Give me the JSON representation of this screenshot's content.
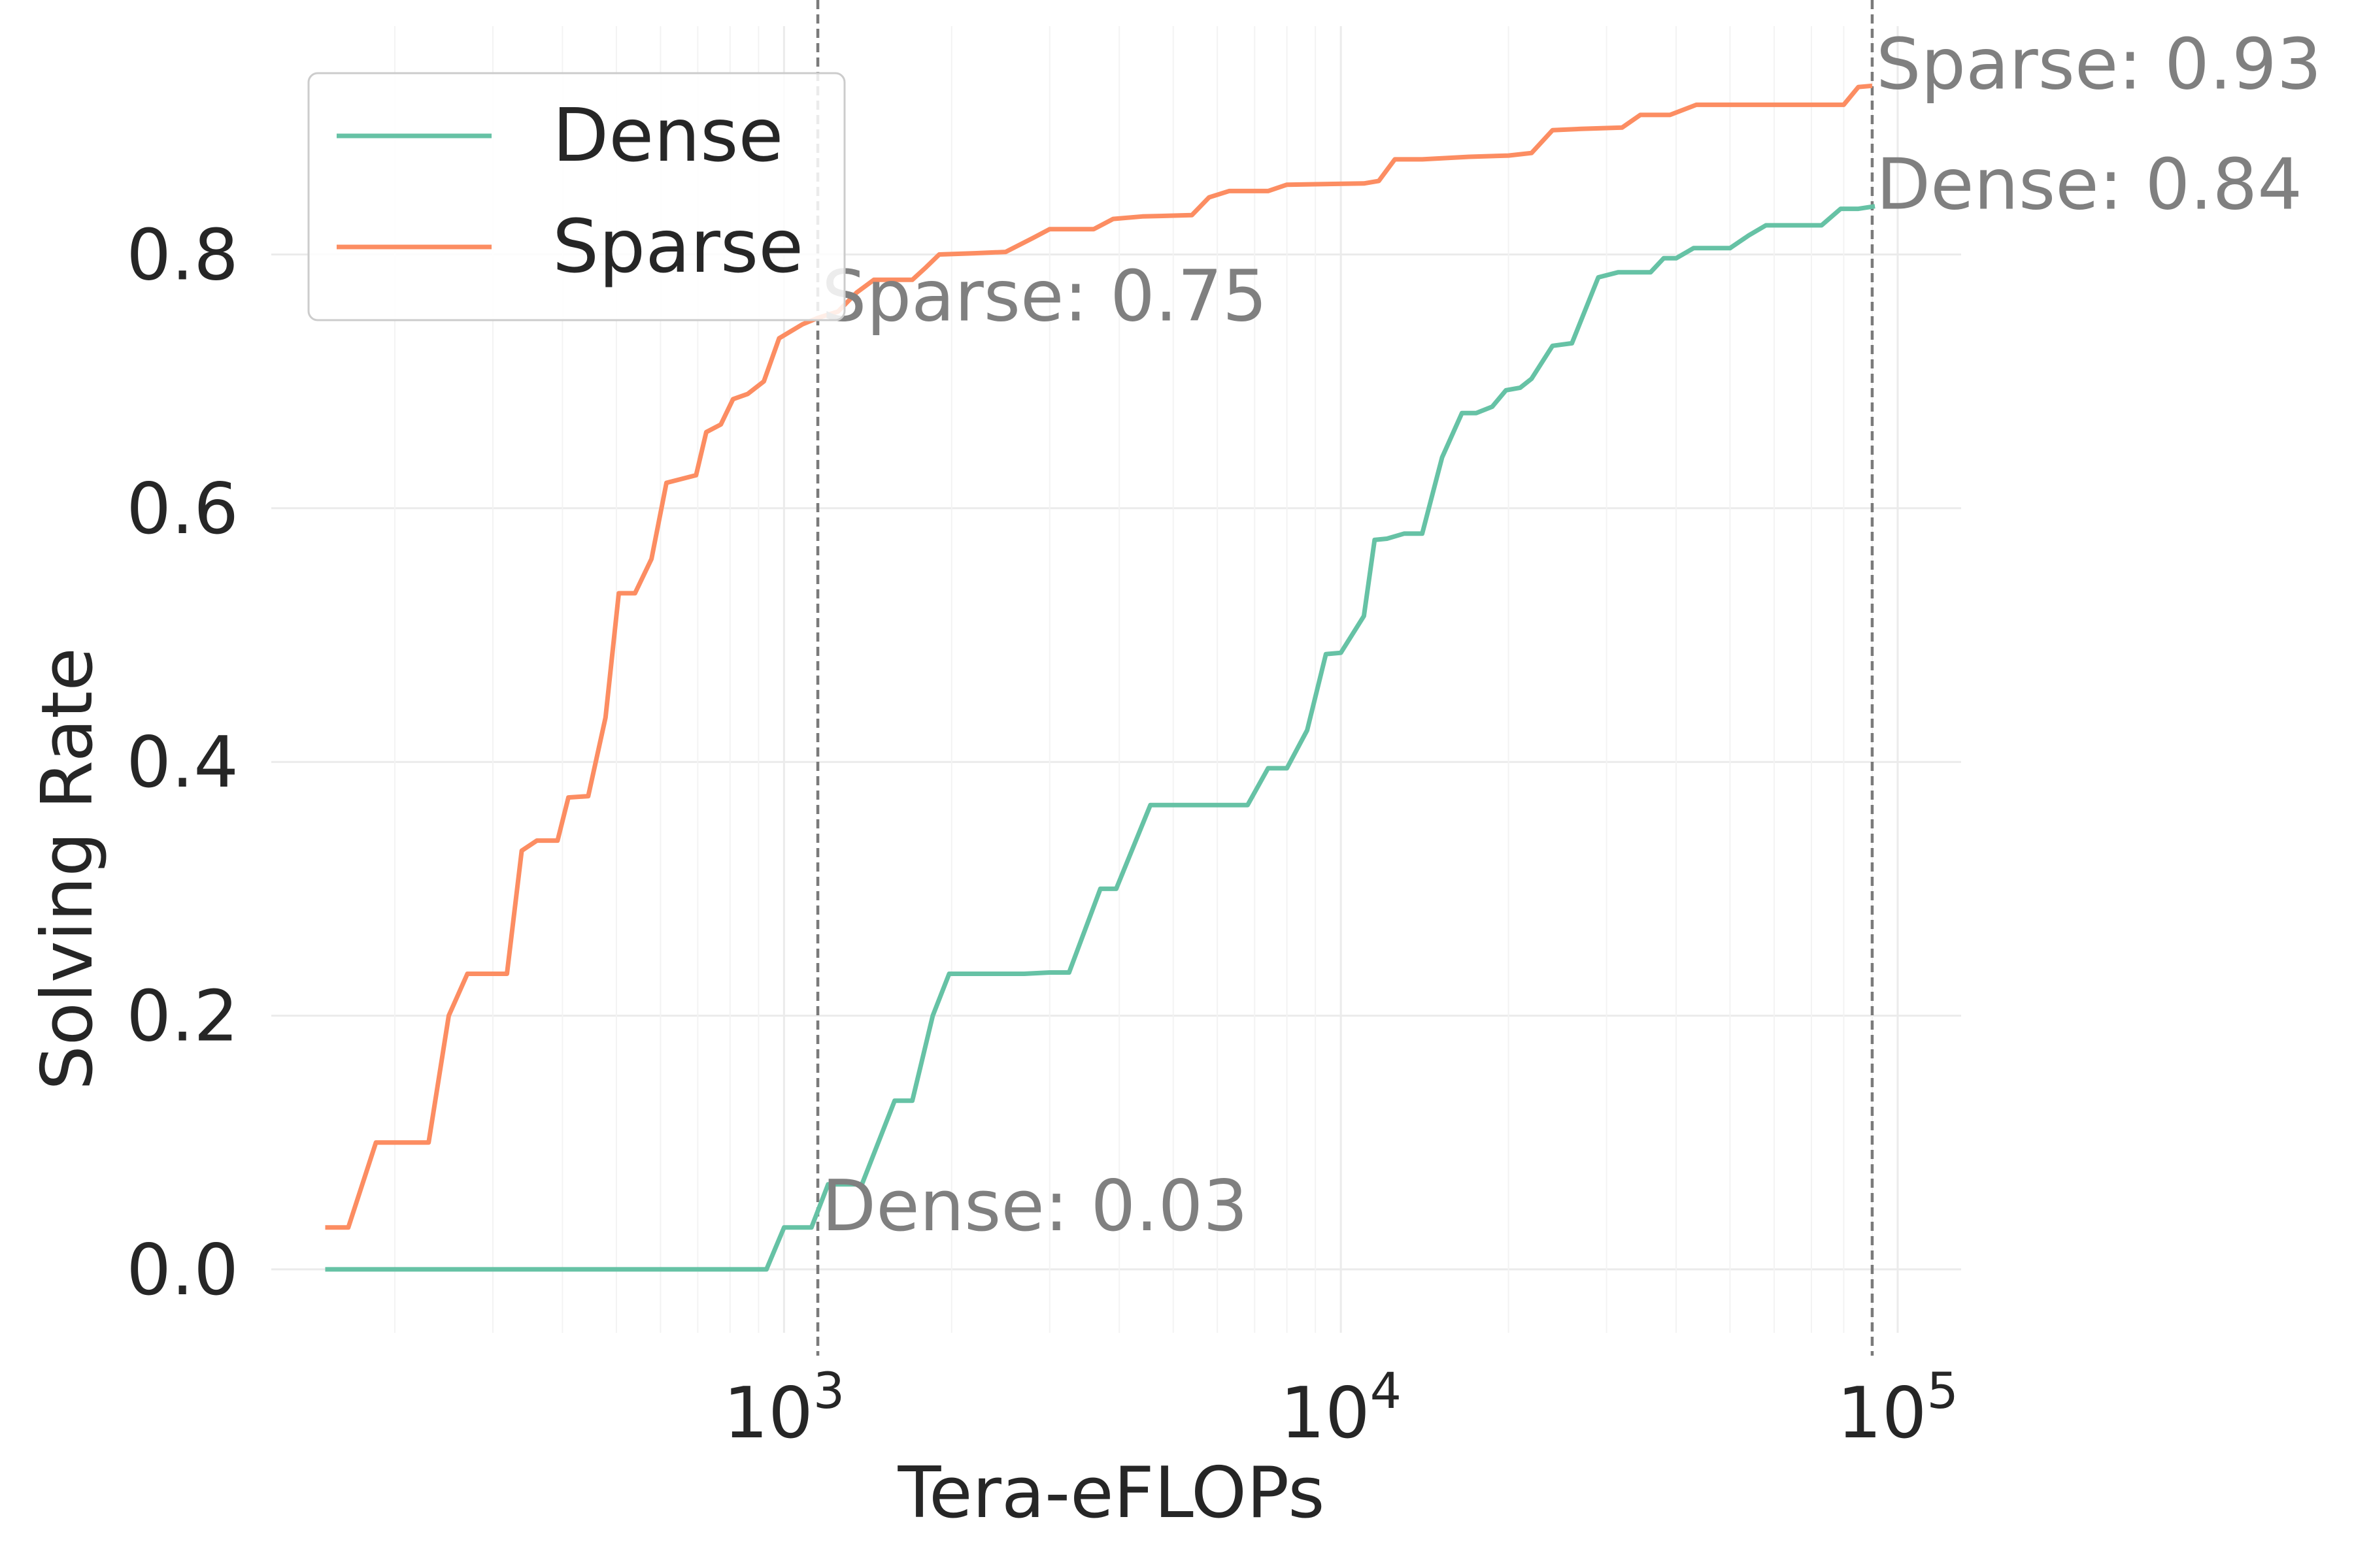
{
  "chart_data": {
    "type": "line",
    "xlabel": "Tera-eFLOPs",
    "ylabel": "Solving Rate",
    "xscale": "log",
    "xlim": [
      120,
      130000
    ],
    "ylim": [
      -0.05,
      0.98
    ],
    "grid": true,
    "legend_position": "top-left",
    "x_ticks": [
      {
        "value": 1000,
        "base": "10",
        "exp": "3"
      },
      {
        "value": 10000,
        "base": "10",
        "exp": "4"
      },
      {
        "value": 100000,
        "base": "10",
        "exp": "5"
      }
    ],
    "y_ticks": [
      {
        "value": 0.0,
        "label": "0.0"
      },
      {
        "value": 0.2,
        "label": "0.2"
      },
      {
        "value": 0.4,
        "label": "0.4"
      },
      {
        "value": 0.6,
        "label": "0.6"
      },
      {
        "value": 0.8,
        "label": "0.8"
      }
    ],
    "series": [
      {
        "name": "Dense",
        "color": "#66c2a5",
        "points": [
          [
            150,
            0.0
          ],
          [
            300,
            0.0
          ],
          [
            600,
            0.0
          ],
          [
            930,
            0.0
          ],
          [
            1000,
            0.033
          ],
          [
            1120,
            0.033
          ],
          [
            1200,
            0.067
          ],
          [
            1380,
            0.067
          ],
          [
            1580,
            0.133
          ],
          [
            1700,
            0.133
          ],
          [
            1850,
            0.2
          ],
          [
            1980,
            0.233
          ],
          [
            2700,
            0.233
          ],
          [
            3000,
            0.234
          ],
          [
            3250,
            0.234
          ],
          [
            3700,
            0.3
          ],
          [
            3950,
            0.3
          ],
          [
            4550,
            0.366
          ],
          [
            6800,
            0.366
          ],
          [
            7400,
            0.395
          ],
          [
            8000,
            0.395
          ],
          [
            8700,
            0.425
          ],
          [
            9400,
            0.485
          ],
          [
            10000,
            0.486
          ],
          [
            11000,
            0.515
          ],
          [
            11500,
            0.575
          ],
          [
            12100,
            0.576
          ],
          [
            13000,
            0.58
          ],
          [
            14000,
            0.58
          ],
          [
            15200,
            0.64
          ],
          [
            16500,
            0.675
          ],
          [
            17500,
            0.675
          ],
          [
            18700,
            0.68
          ],
          [
            19800,
            0.693
          ],
          [
            21000,
            0.695
          ],
          [
            22000,
            0.702
          ],
          [
            24000,
            0.728
          ],
          [
            26000,
            0.73
          ],
          [
            29000,
            0.782
          ],
          [
            31500,
            0.786
          ],
          [
            36000,
            0.786
          ],
          [
            38000,
            0.797
          ],
          [
            40000,
            0.797
          ],
          [
            43000,
            0.805
          ],
          [
            50000,
            0.805
          ],
          [
            54000,
            0.815
          ],
          [
            58000,
            0.823
          ],
          [
            73000,
            0.823
          ],
          [
            79000,
            0.836
          ],
          [
            85000,
            0.836
          ],
          [
            91000,
            0.838
          ]
        ]
      },
      {
        "name": "Sparse",
        "color": "#fc8d62",
        "points": [
          [
            150,
            0.033
          ],
          [
            165,
            0.033
          ],
          [
            185,
            0.1
          ],
          [
            230,
            0.1
          ],
          [
            250,
            0.2
          ],
          [
            270,
            0.233
          ],
          [
            318,
            0.233
          ],
          [
            338,
            0.33
          ],
          [
            360,
            0.338
          ],
          [
            392,
            0.338
          ],
          [
            410,
            0.372
          ],
          [
            445,
            0.373
          ],
          [
            478,
            0.435
          ],
          [
            505,
            0.533
          ],
          [
            540,
            0.533
          ],
          [
            578,
            0.56
          ],
          [
            615,
            0.62
          ],
          [
            695,
            0.626
          ],
          [
            725,
            0.66
          ],
          [
            770,
            0.666
          ],
          [
            810,
            0.686
          ],
          [
            860,
            0.69
          ],
          [
            920,
            0.7
          ],
          [
            980,
            0.734
          ],
          [
            1080,
            0.745
          ],
          [
            1150,
            0.75
          ],
          [
            1250,
            0.755
          ],
          [
            1350,
            0.77
          ],
          [
            1450,
            0.78
          ],
          [
            1700,
            0.78
          ],
          [
            1800,
            0.79
          ],
          [
            1900,
            0.8
          ],
          [
            2200,
            0.801
          ],
          [
            2500,
            0.802
          ],
          [
            2800,
            0.813
          ],
          [
            3000,
            0.82
          ],
          [
            3600,
            0.82
          ],
          [
            3900,
            0.828
          ],
          [
            4400,
            0.83
          ],
          [
            5400,
            0.831
          ],
          [
            5800,
            0.845
          ],
          [
            6300,
            0.85
          ],
          [
            7400,
            0.85
          ],
          [
            8000,
            0.855
          ],
          [
            11000,
            0.856
          ],
          [
            11700,
            0.858
          ],
          [
            12500,
            0.875
          ],
          [
            14000,
            0.875
          ],
          [
            17000,
            0.877
          ],
          [
            20000,
            0.878
          ],
          [
            22000,
            0.88
          ],
          [
            24000,
            0.898
          ],
          [
            27000,
            0.899
          ],
          [
            32000,
            0.9
          ],
          [
            34500,
            0.91
          ],
          [
            39000,
            0.91
          ],
          [
            43500,
            0.918
          ],
          [
            80000,
            0.918
          ],
          [
            85000,
            0.932
          ],
          [
            90000,
            0.933
          ]
        ]
      }
    ],
    "vlines": [
      {
        "x": 1150,
        "style": "dashed"
      },
      {
        "x": 90000,
        "style": "dashed"
      }
    ],
    "annotations": [
      {
        "text": "Sparse: 0.75",
        "x": 1150,
        "y": 0.75
      },
      {
        "text": "Dense: 0.03",
        "x": 1150,
        "y": 0.033
      },
      {
        "text": "Sparse: 0.93",
        "x": 90000,
        "y": 0.933
      },
      {
        "text": "Dense: 0.84",
        "x": 90000,
        "y": 0.838
      }
    ]
  }
}
